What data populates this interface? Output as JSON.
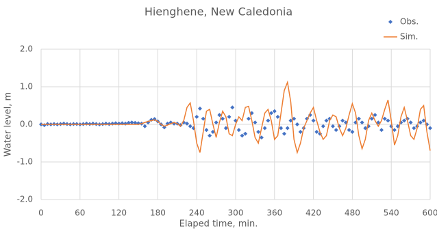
{
  "chart_data": {
    "type": "scatter-line",
    "title": "Hienghene, New Caledonia",
    "x_label": "Elaped time, min.",
    "y_label": "Water level, m",
    "x": [
      0,
      5,
      10,
      15,
      20,
      25,
      30,
      35,
      40,
      45,
      50,
      55,
      60,
      65,
      70,
      75,
      80,
      85,
      90,
      95,
      100,
      105,
      110,
      115,
      120,
      125,
      130,
      135,
      140,
      145,
      150,
      155,
      160,
      165,
      170,
      175,
      180,
      185,
      190,
      195,
      200,
      205,
      210,
      215,
      220,
      225,
      230,
      235,
      240,
      245,
      250,
      255,
      260,
      265,
      270,
      275,
      280,
      285,
      290,
      295,
      300,
      305,
      310,
      315,
      320,
      325,
      330,
      335,
      340,
      345,
      350,
      355,
      360,
      365,
      370,
      375,
      380,
      385,
      390,
      395,
      400,
      405,
      410,
      415,
      420,
      425,
      430,
      435,
      440,
      445,
      450,
      455,
      460,
      465,
      470,
      475,
      480,
      485,
      490,
      495,
      500,
      505,
      510,
      515,
      520,
      525,
      530,
      535,
      540,
      545,
      550,
      555,
      560,
      565,
      570,
      575,
      580,
      585,
      590,
      595,
      600
    ],
    "series": [
      {
        "name": "Obs.",
        "color": "#4472c4",
        "style": "marker",
        "values": [
          0,
          -0.02,
          0.01,
          0,
          0.01,
          0,
          0.01,
          0.02,
          0.01,
          0,
          0.01,
          0.01,
          0,
          0.01,
          0.02,
          0.01,
          0.02,
          0.01,
          0,
          0.01,
          0.02,
          0.01,
          0.02,
          0.03,
          0.02,
          0.03,
          0.02,
          0.04,
          0.05,
          0.04,
          0.03,
          0.02,
          -0.05,
          0.05,
          0.12,
          0.14,
          0.08,
          0,
          -0.08,
          0.02,
          0.05,
          0.02,
          0.02,
          -0.02,
          0.05,
          0.02,
          -0.05,
          -0.1,
          0.2,
          0.42,
          0.15,
          -0.15,
          -0.3,
          -0.2,
          0.05,
          0.25,
          0.15,
          -0.1,
          0.2,
          0.45,
          0.1,
          -0.15,
          -0.3,
          -0.25,
          0.15,
          0.3,
          0.05,
          -0.2,
          -0.35,
          -0.1,
          0.1,
          0.3,
          0.35,
          0.2,
          -0.1,
          -0.25,
          -0.1,
          0.1,
          0.15,
          0,
          -0.2,
          -0.1,
          0.15,
          0.25,
          0.1,
          -0.2,
          -0.25,
          -0.05,
          0.1,
          0.15,
          -0.05,
          -0.15,
          -0.05,
          0.1,
          0.05,
          -0.15,
          -0.2,
          0.05,
          0.15,
          0.05,
          -0.1,
          -0.05,
          0.15,
          0.25,
          0.05,
          -0.15,
          0.15,
          0.1,
          -0.05,
          -0.15,
          -0.05,
          0.05,
          0.1,
          0.15,
          0.05,
          -0.1,
          -0.05,
          0.05,
          0.1,
          0,
          -0.1
        ]
      },
      {
        "name": "Sim.",
        "color": "#ed7d31",
        "style": "line",
        "values": [
          0,
          0,
          0,
          0,
          0,
          0,
          0,
          0,
          0,
          0,
          0,
          0,
          0,
          0,
          0,
          0,
          0,
          0,
          0,
          0,
          0,
          0,
          0,
          0,
          0,
          0,
          0,
          0,
          0,
          0,
          0,
          0.02,
          0.05,
          0.08,
          0.1,
          0.12,
          0.08,
          0,
          -0.05,
          -0.02,
          0.02,
          0.05,
          0.02,
          -0.05,
          0.1,
          0.45,
          0.57,
          0.1,
          -0.5,
          -0.75,
          -0.2,
          0.35,
          0.4,
          0,
          -0.35,
          0.05,
          0.35,
          0.2,
          -0.25,
          -0.3,
          0,
          0.2,
          0.1,
          0.45,
          0.48,
          0.1,
          -0.35,
          -0.5,
          -0.1,
          0.3,
          0.4,
          0.1,
          -0.4,
          -0.3,
          0.3,
          0.9,
          1.12,
          0.6,
          -0.4,
          -0.75,
          -0.5,
          -0.1,
          0.1,
          0.3,
          0.45,
          0.1,
          -0.2,
          -0.4,
          -0.3,
          0.1,
          0.25,
          0.2,
          -0.1,
          -0.3,
          -0.1,
          0.25,
          0.55,
          0.3,
          -0.3,
          -0.65,
          -0.4,
          0.1,
          0.3,
          0.1,
          -0.05,
          0.1,
          0.4,
          0.65,
          0.1,
          -0.55,
          -0.3,
          0.2,
          0.45,
          0.1,
          -0.3,
          -0.4,
          -0.1,
          0.4,
          0.5,
          -0.2,
          -0.7
        ]
      }
    ],
    "xlim": [
      0,
      600
    ],
    "xticks": [
      0,
      60,
      120,
      180,
      240,
      300,
      360,
      420,
      480,
      540,
      600
    ],
    "ylim": [
      -2,
      2
    ],
    "yticks": [
      {
        "value": 2,
        "label": "2.0"
      },
      {
        "value": 1,
        "label": "1.0"
      },
      {
        "value": 0,
        "label": "0.0"
      },
      {
        "value": -1,
        "label": "-1.0"
      },
      {
        "value": -2,
        "label": "-2.0"
      }
    ],
    "grid": true,
    "legend": "top-right"
  }
}
